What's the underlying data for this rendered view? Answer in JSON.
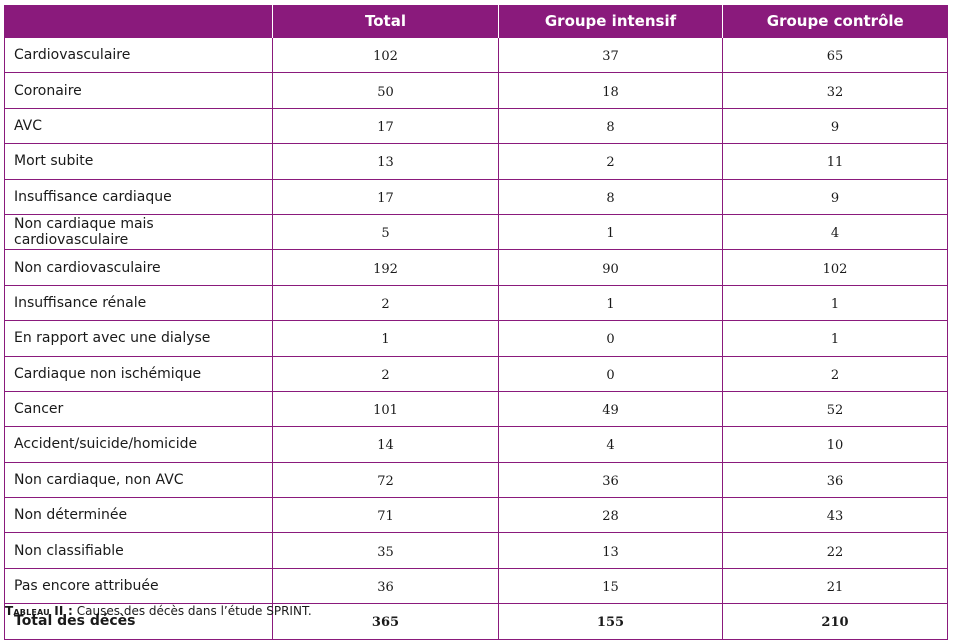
{
  "table": {
    "headers": [
      "",
      "Total",
      "Groupe intensif",
      "Groupe contrôle"
    ],
    "rows": [
      {
        "label": "Cardiovasculaire",
        "total": "102",
        "intensif": "37",
        "controle": "65"
      },
      {
        "label": "Coronaire",
        "total": "50",
        "intensif": "18",
        "controle": "32"
      },
      {
        "label": "AVC",
        "total": "17",
        "intensif": "8",
        "controle": "9"
      },
      {
        "label": "Mort subite",
        "total": "13",
        "intensif": "2",
        "controle": "11"
      },
      {
        "label": "Insuffisance cardiaque",
        "total": "17",
        "intensif": "8",
        "controle": "9"
      },
      {
        "label": "Non cardiaque mais cardiovasculaire",
        "total": "5",
        "intensif": "1",
        "controle": "4"
      },
      {
        "label": "Non cardiovasculaire",
        "total": "192",
        "intensif": "90",
        "controle": "102"
      },
      {
        "label": "Insuffisance rénale",
        "total": "2",
        "intensif": "1",
        "controle": "1"
      },
      {
        "label": "En rapport avec une dialyse",
        "total": "1",
        "intensif": "0",
        "controle": "1"
      },
      {
        "label": "Cardiaque non ischémique",
        "total": "2",
        "intensif": "0",
        "controle": "2"
      },
      {
        "label": "Cancer",
        "total": "101",
        "intensif": "49",
        "controle": "52"
      },
      {
        "label": "Accident/suicide/homicide",
        "total": "14",
        "intensif": "4",
        "controle": "10"
      },
      {
        "label": "Non cardiaque, non AVC",
        "total": "72",
        "intensif": "36",
        "controle": "36"
      },
      {
        "label": "Non déterminée",
        "total": "71",
        "intensif": "28",
        "controle": "43"
      },
      {
        "label": "Non classifiable",
        "total": "35",
        "intensif": "13",
        "controle": "22"
      },
      {
        "label": "Pas encore attribuée",
        "total": "36",
        "intensif": "15",
        "controle": "21"
      },
      {
        "label": "Total des décès",
        "total": "365",
        "intensif": "155",
        "controle": "210"
      }
    ]
  },
  "caption": {
    "label": "Tableau II :",
    "text": " Causes des décès dans l’étude SPRINT."
  },
  "colors": {
    "header_bg": "#8a1a7c",
    "border": "#8a1a7c"
  }
}
